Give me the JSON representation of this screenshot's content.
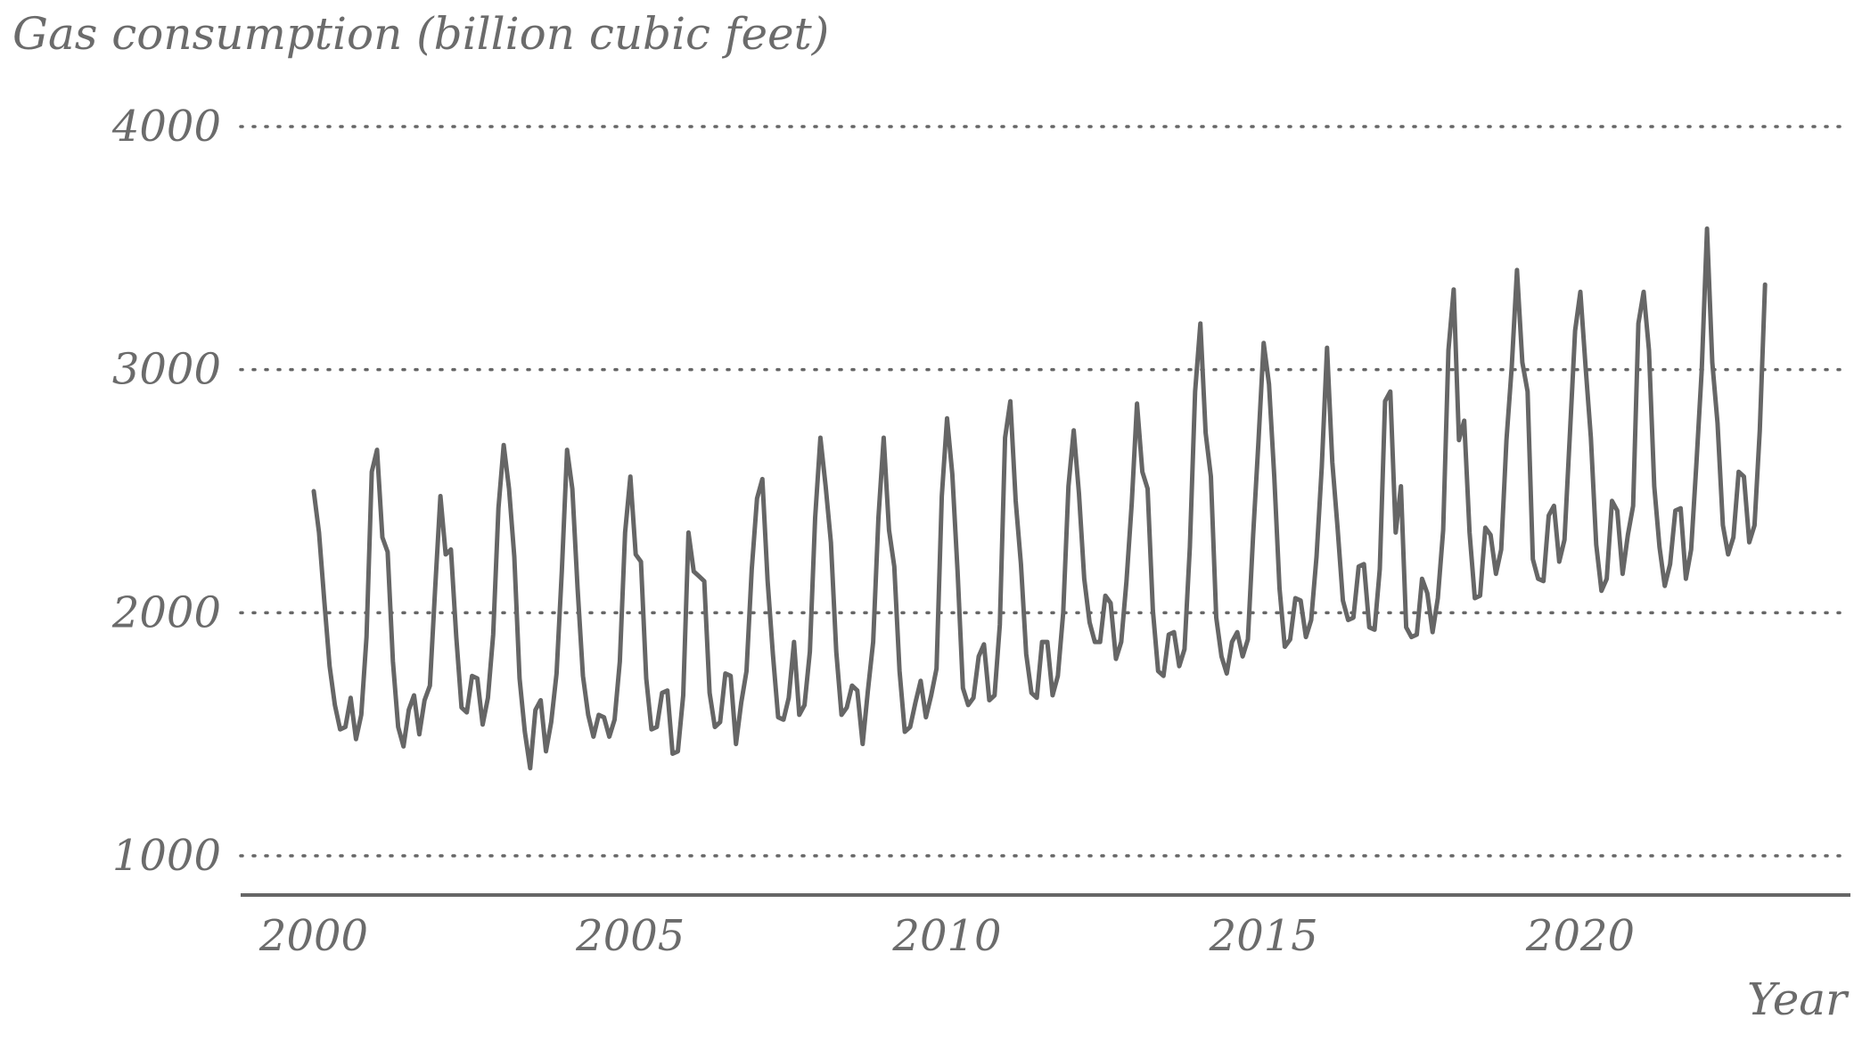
{
  "chart_data": {
    "type": "line",
    "title": "Gas consumption (billion cubic feet)",
    "xlabel": "Year",
    "ylabel": "",
    "xlim": [
      1999.75,
      2024.0
    ],
    "ylim": [
      870,
      4000
    ],
    "y_ticks": [
      1000,
      2000,
      3000,
      4000
    ],
    "y_tick_labels": [
      "1000",
      "2000",
      "3000",
      "4000"
    ],
    "x_ticks": [
      2000,
      2005,
      2010,
      2015,
      2020
    ],
    "x_tick_labels": [
      "2000",
      "2005",
      "2010",
      "2015",
      "2020"
    ],
    "grid": "horizontal dotted",
    "colors": {
      "line": "#666666",
      "text": "#6b6b6b"
    },
    "series": [
      {
        "x_start": 2000,
        "x_step": 0.08333333,
        "values": [
          2500,
          2330,
          2050,
          1780,
          1620,
          1520,
          1530,
          1650,
          1480,
          1580,
          1900,
          2580,
          2670,
          2310,
          2250,
          1800,
          1530,
          1450,
          1600,
          1660,
          1500,
          1640,
          1700,
          2100,
          2480,
          2240,
          2260,
          1900,
          1610,
          1590,
          1740,
          1730,
          1540,
          1650,
          1910,
          2430,
          2690,
          2510,
          2230,
          1730,
          1510,
          1360,
          1600,
          1640,
          1430,
          1550,
          1750,
          2170,
          2670,
          2510,
          2100,
          1740,
          1580,
          1490,
          1580,
          1570,
          1490,
          1560,
          1800,
          2330,
          2560,
          2240,
          2210,
          1730,
          1520,
          1530,
          1670,
          1680,
          1420,
          1430,
          1660,
          2330,
          2170,
          2150,
          2130,
          1670,
          1530,
          1550,
          1750,
          1740,
          1460,
          1630,
          1760,
          2180,
          2470,
          2550,
          2130,
          1830,
          1570,
          1560,
          1650,
          1880,
          1580,
          1620,
          1840,
          2390,
          2720,
          2520,
          2290,
          1840,
          1580,
          1610,
          1700,
          1680,
          1460,
          1680,
          1880,
          2390,
          2720,
          2340,
          2190,
          1760,
          1510,
          1530,
          1630,
          1720,
          1570,
          1660,
          1770,
          2480,
          2800,
          2570,
          2170,
          1690,
          1620,
          1650,
          1820,
          1870,
          1640,
          1660,
          1950,
          2720,
          2870,
          2460,
          2200,
          1830,
          1670,
          1650,
          1880,
          1880,
          1660,
          1740,
          2000,
          2520,
          2750,
          2490,
          2140,
          1960,
          1880,
          1880,
          2070,
          2040,
          1810,
          1880,
          2130,
          2450,
          2860,
          2580,
          2510,
          2010,
          1760,
          1740,
          1910,
          1920,
          1780,
          1850,
          2270,
          2910,
          3190,
          2740,
          2560,
          1980,
          1820,
          1750,
          1880,
          1920,
          1820,
          1890,
          2320,
          2700,
          3110,
          2940,
          2560,
          2100,
          1860,
          1890,
          2060,
          2050,
          1900,
          1970,
          2230,
          2600,
          3090,
          2620,
          2350,
          2050,
          1970,
          1980,
          2190,
          2200,
          1940,
          1930,
          2180,
          2870,
          2910,
          2330,
          2520,
          1940,
          1900,
          1910,
          2140,
          2080,
          1920,
          2060,
          2340,
          3080,
          3330,
          2710,
          2790,
          2330,
          2060,
          2070,
          2350,
          2320,
          2160,
          2260,
          2710,
          3010,
          3410,
          3030,
          2910,
          2220,
          2140,
          2130,
          2400,
          2440,
          2210,
          2300,
          2730,
          3160,
          3320,
          3010,
          2720,
          2280,
          2090,
          2140,
          2460,
          2420,
          2160,
          2320,
          2440,
          3190,
          3320,
          3080,
          2520,
          2270,
          2110,
          2200,
          2420,
          2430,
          2140,
          2260,
          2620,
          3000,
          3580,
          3030,
          2780,
          2360,
          2240,
          2310,
          2580,
          2560,
          2290,
          2360,
          2750,
          3350
        ]
      }
    ]
  }
}
